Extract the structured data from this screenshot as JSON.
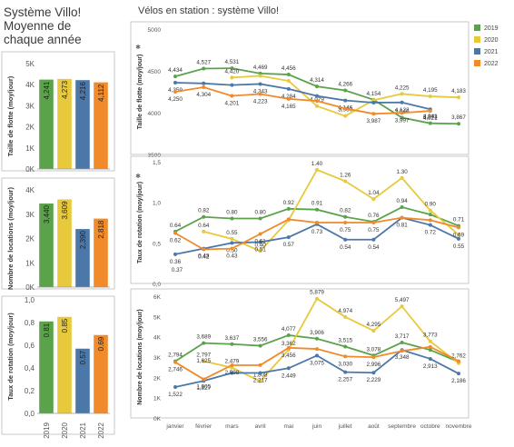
{
  "left_title": [
    "Système Villo!",
    "Moyenne de",
    "chaque année"
  ],
  "right_title": "Vélos en station : système Villo!",
  "legend": [
    {
      "label": "2019",
      "color": "#5aa34a"
    },
    {
      "label": "2020",
      "color": "#e8c93c"
    },
    {
      "label": "2021",
      "color": "#4b78a8"
    },
    {
      "label": "2022",
      "color": "#f08a2a"
    }
  ],
  "chart_data": [
    {
      "type": "bar",
      "ylabel": "Taille de flotte (moy/jour)",
      "categories": [
        "2019",
        "2020",
        "2021",
        "2022"
      ],
      "values": [
        4241,
        4273,
        4216,
        4112
      ],
      "value_labels": [
        "4,241",
        "4,273",
        "4,216",
        "4,112"
      ],
      "ylim": [
        0,
        5000
      ],
      "yticks": [
        0,
        1000,
        2000,
        3000,
        4000,
        5000
      ],
      "ytick_labels": [
        "0K",
        "1K",
        "2K",
        "3K",
        "4K",
        "5K"
      ]
    },
    {
      "type": "bar",
      "ylabel": "Nombre de locations (moy/jour)",
      "categories": [
        "2019",
        "2020",
        "2021",
        "2022"
      ],
      "values": [
        3440,
        3609,
        2390,
        2818
      ],
      "value_labels": [
        "3,440",
        "3,609",
        "2,390",
        "2,818"
      ],
      "ylim": [
        0,
        4000
      ],
      "yticks": [
        0,
        1000,
        2000,
        3000,
        4000
      ],
      "ytick_labels": [
        "0K",
        "1K",
        "2K",
        "3K",
        "4K"
      ]
    },
    {
      "type": "bar",
      "ylabel": "Taux de rotation (moy/jour)",
      "categories": [
        "2019",
        "2020",
        "2021",
        "2022"
      ],
      "values": [
        0.81,
        0.85,
        0.57,
        0.69
      ],
      "value_labels": [
        "0.81",
        "0.85",
        "0.57",
        "0.69"
      ],
      "ylim": [
        0,
        1.0
      ],
      "yticks": [
        0,
        0.2,
        0.4,
        0.6,
        0.8,
        1.0
      ],
      "ytick_labels": [
        "0,0",
        "0,2",
        "0,4",
        "0,6",
        "0,8",
        "1,0"
      ]
    },
    {
      "type": "line",
      "ylabel": "Taille de flotte (moy/jour)",
      "categories": [
        "janvier",
        "février",
        "mars",
        "avril",
        "mai",
        "juin",
        "juillet",
        "août",
        "septembre",
        "octobre",
        "novembre"
      ],
      "ylim": [
        3500,
        5000
      ],
      "yticks": [
        3500,
        4000,
        4500,
        5000
      ],
      "ytick_labels": [
        "3500",
        "4000",
        "4500",
        "5000"
      ],
      "series": [
        {
          "name": "2019",
          "values": [
            4434,
            4527,
            4531,
            4469,
            4456,
            4314,
            4266,
            4154,
            3940,
            3873,
            3867
          ],
          "labels": [
            "4,434",
            "4,527",
            "4,531",
            "4,469",
            "4,456",
            "4,314",
            "4,266",
            "4,154",
            "3,940",
            "3,873",
            "3,867"
          ]
        },
        {
          "name": "2020",
          "values": [
            null,
            null,
            4420,
            4440,
            4380,
            4079,
            3960,
            4150,
            4225,
            4195,
            4183
          ],
          "labels": [
            null,
            null,
            "4,420",
            null,
            null,
            "4,079",
            "3,960",
            null,
            "4,225",
            "4,195",
            "4,183"
          ]
        },
        {
          "name": "2021",
          "values": [
            4359,
            4350,
            4330,
            4343,
            4284,
            4200,
            4146,
            4120,
            4122,
            4041,
            null
          ],
          "labels": [
            "4,359",
            null,
            null,
            "4,343",
            "4,284",
            null,
            "4,146",
            null,
            "4,122",
            "4,041",
            null
          ]
        },
        {
          "name": "2022",
          "values": [
            4250,
            4304,
            4201,
            4223,
            4165,
            4140,
            4050,
            3987,
            3997,
            4021,
            null
          ],
          "labels": [
            "4,250",
            "4,304",
            "4,201",
            "4,223",
            "4,165",
            null,
            null,
            "3,987",
            "3,997",
            "4,021",
            null
          ]
        }
      ]
    },
    {
      "type": "line",
      "ylabel": "Taux de rotation (moy/jour)",
      "categories": [
        "janvier",
        "février",
        "mars",
        "avril",
        "mai",
        "juin",
        "juillet",
        "août",
        "septembre",
        "octobre",
        "novembre"
      ],
      "ylim": [
        0.0,
        1.5
      ],
      "yticks": [
        0.0,
        0.5,
        1.0,
        1.5
      ],
      "ytick_labels": [
        "0,0",
        "0,5",
        "1,0",
        "1,5"
      ],
      "series": [
        {
          "name": "2019",
          "values": [
            0.64,
            0.82,
            0.8,
            0.8,
            0.92,
            0.91,
            0.82,
            0.76,
            0.94,
            0.85,
            0.71
          ],
          "labels": [
            "0.64",
            "0.82",
            "0.80",
            "0.80",
            "0.92",
            "0.91",
            "0.82",
            "0.76",
            "0.94",
            null,
            "0.71"
          ]
        },
        {
          "name": "2020",
          "values": [
            null,
            0.64,
            0.55,
            0.4,
            0.78,
            1.4,
            1.26,
            1.04,
            1.3,
            0.9,
            0.6
          ],
          "labels": [
            null,
            "0.64",
            "0.55",
            "0.40",
            null,
            "1.40",
            "1.26",
            "1.04",
            "1.30",
            "0.90",
            null
          ]
        },
        {
          "name": "2021",
          "values": [
            0.36,
            0.43,
            0.5,
            0.51,
            0.57,
            0.73,
            0.54,
            0.54,
            0.81,
            0.72,
            0.55
          ],
          "labels": [
            "0.36",
            "0.43",
            "0.50",
            "0.51",
            "0.57",
            "0.73",
            "0.54",
            "0.54",
            null,
            "0.72",
            "0.55"
          ]
        },
        {
          "name": "2022",
          "values": [
            0.62,
            0.42,
            0.43,
            0.61,
            0.79,
            0.75,
            0.75,
            0.75,
            0.81,
            0.78,
            0.69
          ],
          "labels": [
            "0.62",
            "0.42",
            "0.43",
            "0.61",
            null,
            null,
            "0.75",
            "0.75",
            "0.81",
            null,
            "0.69"
          ]
        }
      ],
      "extra_labels": [
        "0.37"
      ]
    },
    {
      "type": "line",
      "ylabel": "Nombre de locations (moy/jour)",
      "categories": [
        "janvier",
        "février",
        "mars",
        "avril",
        "mai",
        "juin",
        "juillet",
        "août",
        "septembre",
        "octobre",
        "novembre"
      ],
      "ylim": [
        0,
        6000
      ],
      "yticks": [
        0,
        1000,
        2000,
        3000,
        4000,
        5000,
        6000
      ],
      "ytick_labels": [
        "0K",
        "1K",
        "2K",
        "3K",
        "4K",
        "5K",
        "6K"
      ],
      "series": [
        {
          "name": "2019",
          "values": [
            2794,
            3689,
            3637,
            3556,
            4077,
            3906,
            3515,
            3078,
            3717,
            3350,
            2762
          ],
          "labels": [
            "2,794",
            "3,689",
            "3,637",
            "3,556",
            "4,077",
            "3,906",
            "3,515",
            "3,078",
            "3,717",
            null,
            "2,762"
          ]
        },
        {
          "name": "2020",
          "values": [
            null,
            2797,
            2479,
            1808,
            3362,
            5879,
            4974,
            4295,
            5497,
            3773,
            2700
          ],
          "labels": [
            null,
            "2,797",
            "2,479",
            "1,808",
            "3,362",
            "5,879",
            "4,974",
            "4,295",
            "5,497",
            "3,773",
            null
          ]
        },
        {
          "name": "2021",
          "values": [
            1522,
            1827,
            2217,
            2217,
            2449,
            3075,
            2257,
            2229,
            3348,
            2913,
            2186
          ],
          "labels": [
            "1,522",
            "1,827",
            null,
            "2,217",
            "2,449",
            "3,075",
            "2,257",
            "2,229",
            "3,348",
            "2,913",
            "2,186"
          ]
        },
        {
          "name": "2022",
          "values": [
            2746,
            1905,
            2598,
            2600,
            3456,
            3400,
            3030,
            2996,
            3300,
            3500,
            2800
          ],
          "labels": [
            "2,746",
            "1,905",
            "2,598",
            null,
            "3,456",
            null,
            "3,030",
            "2,996",
            null,
            null,
            null
          ]
        }
      ],
      "extra_labels": [
        "1,625"
      ]
    }
  ]
}
